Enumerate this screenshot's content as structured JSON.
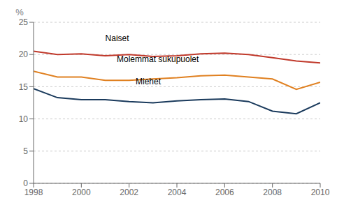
{
  "chart_data": {
    "type": "line",
    "y_label": "%",
    "x": [
      1998,
      1999,
      2000,
      2001,
      2002,
      2003,
      2004,
      2005,
      2006,
      2007,
      2008,
      2009,
      2010
    ],
    "series": [
      {
        "name": "Naiset",
        "color": "#c0392b",
        "values": [
          20.5,
          20.0,
          20.1,
          19.8,
          20.0,
          19.7,
          19.8,
          20.1,
          20.2,
          20.0,
          19.5,
          19.0,
          18.7
        ]
      },
      {
        "name": "Molemmat sukupuolet",
        "color": "#e08020",
        "values": [
          17.4,
          16.5,
          16.5,
          16.0,
          16.0,
          16.2,
          16.4,
          16.7,
          16.8,
          16.5,
          16.2,
          14.6,
          15.7
        ]
      },
      {
        "name": "Miehet",
        "color": "#1a3a5c",
        "values": [
          14.7,
          13.3,
          13.0,
          13.0,
          12.7,
          12.5,
          12.8,
          13.0,
          13.1,
          12.7,
          11.2,
          10.8,
          12.5
        ]
      }
    ],
    "xlim": [
      1998,
      2010
    ],
    "xticks": [
      1998,
      2000,
      2002,
      2004,
      2006,
      2008,
      2010
    ],
    "ylim": [
      0,
      25
    ],
    "yticks": [
      0,
      5,
      10,
      15,
      20,
      25
    ],
    "grid": true,
    "annotations": [
      {
        "text": "Naiset",
        "x": 2001.5,
        "y": 21.5
      },
      {
        "text": "Molemmat sukupuolet",
        "x": 2003.2,
        "y": 18.3
      },
      {
        "text": "Miehet",
        "x": 2002.8,
        "y": 14.8
      }
    ]
  }
}
